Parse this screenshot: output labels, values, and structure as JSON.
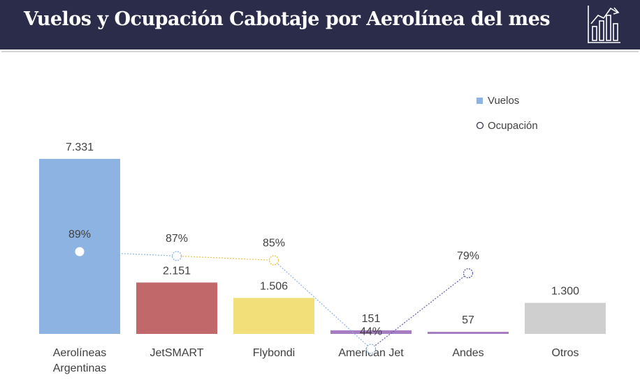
{
  "header": {
    "title": "Vuelos y Ocupación Cabotaje por Aerolínea del mes",
    "icon": "bar-chart-trend-icon"
  },
  "chart_data": {
    "type": "bar",
    "title": "Vuelos y Ocupación Cabotaje por Aerolínea del mes",
    "categories": [
      "Aerolíneas Argentinas",
      "JetSMART",
      "Flybondi",
      "American Jet",
      "Andes",
      "Otros"
    ],
    "category_lines": [
      [
        "Aerolíneas",
        "Argentinas"
      ],
      [
        "JetSMART"
      ],
      [
        "Flybondi"
      ],
      [
        "American Jet"
      ],
      [
        "Andes"
      ],
      [
        "Otros"
      ]
    ],
    "series": [
      {
        "name": "Vuelos",
        "type": "bar",
        "values": [
          7331,
          2151,
          1506,
          151,
          57,
          1300
        ],
        "labels": [
          "7.331",
          "2.151",
          "1.506",
          "151",
          "57",
          "1.300"
        ],
        "colors": [
          "#8db3e2",
          "#c0686a",
          "#f2df79",
          "#a77dc2",
          "#a77dc2",
          "#cfcfcf"
        ]
      },
      {
        "name": "Ocupación",
        "type": "line",
        "values": [
          89,
          87,
          85,
          44,
          79,
          null
        ],
        "labels": [
          "89%",
          "87%",
          "85%",
          "44%",
          "79%",
          ""
        ],
        "marker_colors": [
          "#8db3e2",
          "#8db3e2",
          "#f2c146",
          "#8db3e2",
          "#5e5eb2",
          null
        ],
        "segment_colors": [
          "#8db3e2",
          "#f2c146",
          "#8db3e2",
          "#5e5eb2"
        ]
      }
    ],
    "legend": [
      "Vuelos",
      "Ocupación"
    ],
    "legend_position": "top-right",
    "ylim_bars": [
      0,
      8000
    ],
    "ylim_line": [
      0,
      150
    ],
    "grid": false
  }
}
